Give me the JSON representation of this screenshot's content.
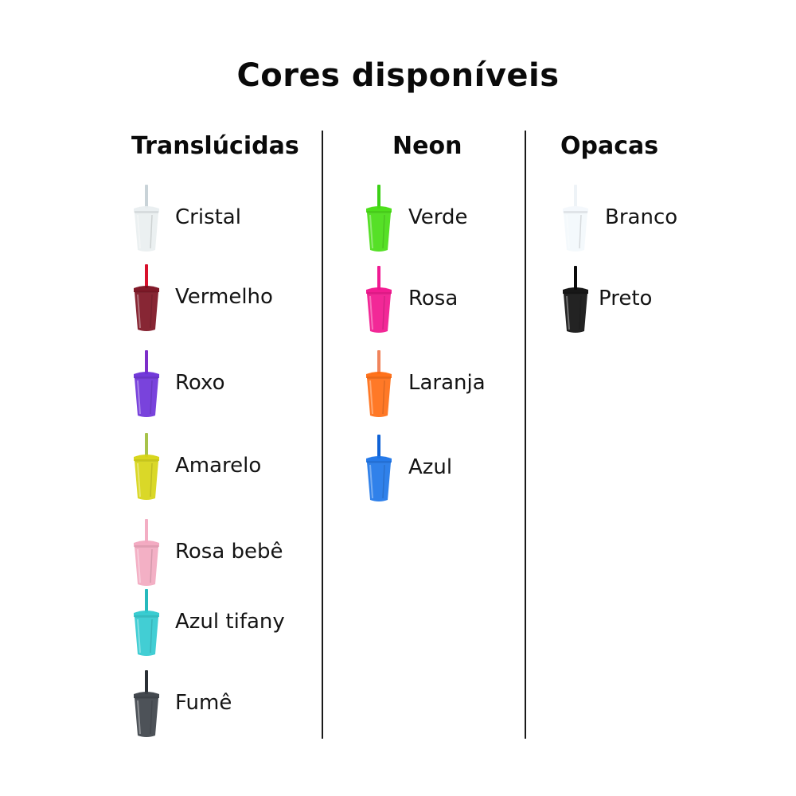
{
  "title": "Cores disponíveis",
  "columns": [
    {
      "heading": "Translúcidas",
      "items": [
        {
          "label": "Cristal",
          "color": "#e9eef0",
          "straw": "#c9d3d8"
        },
        {
          "label": "Vermelho",
          "color": "#7a0e1e",
          "straw": "#d8102c"
        },
        {
          "label": "Roxo",
          "color": "#6a2fd8",
          "straw": "#7d2ec9"
        },
        {
          "label": "Amarelo",
          "color": "#d6d411",
          "straw": "#a7c34a"
        },
        {
          "label": "Rosa bebê",
          "color": "#f2a7bf",
          "straw": "#f3aec4"
        },
        {
          "label": "Azul tifany",
          "color": "#2ec9cf",
          "straw": "#26b9bd"
        },
        {
          "label": "Fumê",
          "color": "#3a3f46",
          "straw": "#2a2f35"
        }
      ]
    },
    {
      "heading": "Neon",
      "items": [
        {
          "label": "Verde",
          "color": "#44dd10",
          "straw": "#3bd016"
        },
        {
          "label": "Rosa",
          "color": "#f1118c",
          "straw": "#f01a93"
        },
        {
          "label": "Laranja",
          "color": "#ff6a10",
          "straw": "#f0845b"
        },
        {
          "label": "Azul",
          "color": "#1a73e8",
          "straw": "#0f62d6"
        }
      ]
    },
    {
      "heading": "Opacas",
      "items": [
        {
          "label": "Branco",
          "color": "#f3f8fc",
          "straw": "#eef3f7"
        },
        {
          "label": "Preto",
          "color": "#0b0b0b",
          "straw": "#0b0b0b"
        }
      ]
    }
  ]
}
